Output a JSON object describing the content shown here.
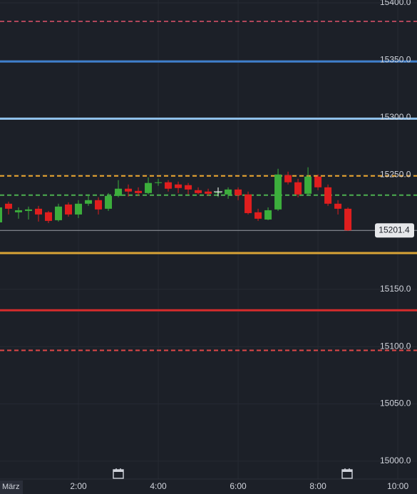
{
  "chart_data": {
    "type": "candlestick",
    "x": [
      0,
      0.25,
      0.5,
      0.75,
      1,
      1.25,
      1.5,
      1.75,
      2,
      2.25,
      2.5,
      2.75,
      3,
      3.25,
      3.5,
      3.75,
      4,
      4.25,
      4.5,
      4.75,
      5,
      5.25,
      5.5,
      5.75,
      6,
      6.25,
      6.5,
      6.75,
      7,
      7.25,
      7.5,
      7.75,
      8,
      8.25,
      8.5,
      8.75
    ],
    "open": [
      15208.4,
      15224.7,
      15217.2,
      15218.4,
      15220.3,
      15217.2,
      15210.3,
      15224.0,
      15215.3,
      15224.7,
      15227.8,
      15220.3,
      15231.5,
      15237.8,
      15235.9,
      15234.0,
      15242.8,
      15243.4,
      15241.5,
      15240.9,
      15236.5,
      15235.3,
      15234.0,
      15232.8,
      15237.1,
      15232.8,
      15217.2,
      15210.9,
      15219.7,
      15249.6,
      15243.4,
      15233.4,
      15248.4,
      15239.0,
      15224.7,
      15220.3
    ],
    "high": [
      15225.3,
      15226.5,
      15221.5,
      15222.2,
      15222.8,
      15218.4,
      15224.7,
      15225.9,
      15227.8,
      15232.8,
      15230.3,
      15234.0,
      15245.3,
      15241.5,
      15239.0,
      15247.7,
      15246.5,
      15245.3,
      15244.0,
      15242.8,
      15239.0,
      15237.8,
      15239.0,
      15239.0,
      15239.0,
      15235.3,
      15220.3,
      15221.5,
      15255.2,
      15252.7,
      15246.5,
      15256.5,
      15250.2,
      15241.5,
      15227.8,
      15221.5
    ],
    "low": [
      15206.6,
      15215.3,
      15211.6,
      15210.9,
      15209.1,
      15207.8,
      15209.1,
      15213.4,
      15212.2,
      15222.8,
      15215.3,
      15218.4,
      15230.3,
      15230.9,
      15231.5,
      15232.8,
      15240.3,
      15235.3,
      15234.0,
      15232.8,
      15232.8,
      15231.5,
      15230.3,
      15229.0,
      15227.8,
      15215.3,
      15209.7,
      15210.3,
      15218.4,
      15241.5,
      15230.3,
      15232.8,
      15236.5,
      15222.8,
      15215.3,
      15200.9
    ],
    "close": [
      15221.5,
      15220.3,
      15219.0,
      15219.7,
      15215.3,
      15209.7,
      15222.2,
      15215.3,
      15224.7,
      15227.8,
      15219.7,
      15231.5,
      15237.8,
      15235.3,
      15234.0,
      15242.8,
      15243.4,
      15237.8,
      15238.4,
      15237.1,
      15234.0,
      15233.4,
      15234.6,
      15237.1,
      15232.1,
      15216.5,
      15211.6,
      15219.0,
      15250.2,
      15243.4,
      15232.8,
      15248.4,
      15239.0,
      15224.7,
      15220.3,
      15201.4
    ],
    "up_color": "#3cae3c",
    "down_color": "#e01e1e",
    "xlim": [
      0.036,
      10.48
    ],
    "ylim": [
      14984.4,
      15402.5
    ],
    "xticks": [
      {
        "value": 2,
        "label": "2:00"
      },
      {
        "value": 4,
        "label": "4:00"
      },
      {
        "value": 6,
        "label": "6:00"
      },
      {
        "value": 8,
        "label": "8:00"
      },
      {
        "value": 10,
        "label": "10:00"
      }
    ],
    "yticks": [
      {
        "value": 15000,
        "label": "15000.0"
      },
      {
        "value": 15050,
        "label": "15050.0"
      },
      {
        "value": 15100,
        "label": "15100.0"
      },
      {
        "value": 15150,
        "label": "15150.0"
      },
      {
        "value": 15250,
        "label": "15250.0"
      },
      {
        "value": 15300,
        "label": "15300.0"
      },
      {
        "value": 15350,
        "label": "15350.0"
      },
      {
        "value": 15400,
        "label": "15400.0"
      }
    ],
    "x_start_label": "März",
    "grid": true,
    "levels": [
      {
        "value": 15383.8,
        "color": "#b0465a",
        "style": "dashed"
      },
      {
        "value": 15348.8,
        "color": "#3f7fcc",
        "style": "solid"
      },
      {
        "value": 15298.9,
        "color": "#8fc0ea",
        "style": "solid"
      },
      {
        "value": 15249.0,
        "color": "#f0a830",
        "style": "dashed"
      },
      {
        "value": 15232.2,
        "color": "#4caf50",
        "style": "dashed"
      },
      {
        "value": 15201.4,
        "color": "#9a9ea6",
        "style": "thin",
        "label": "15201.4"
      },
      {
        "value": 15181.6,
        "color": "#d9a336",
        "style": "solid"
      },
      {
        "value": 15131.7,
        "color": "#d62c2c",
        "style": "solid"
      },
      {
        "value": 15096.7,
        "color": "#e04848",
        "style": "dashed"
      }
    ]
  }
}
